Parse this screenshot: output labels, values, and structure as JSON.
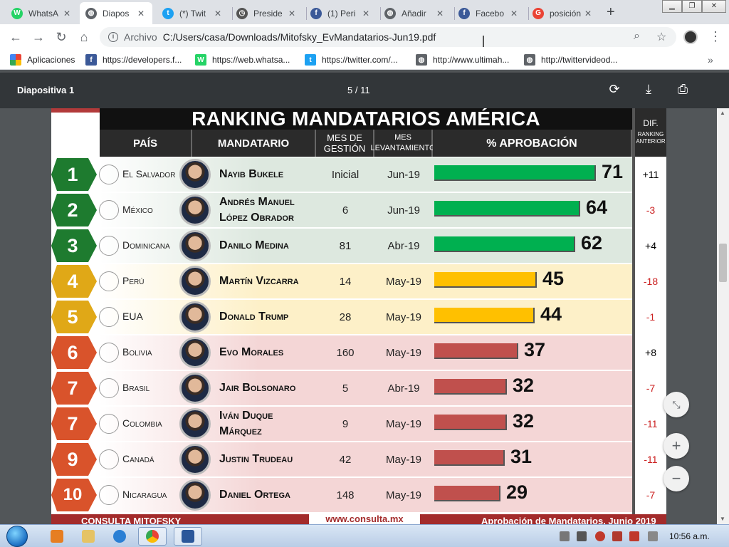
{
  "browser": {
    "tabs": [
      {
        "title": "WhatsA",
        "color": "#25d366",
        "glyph": "W",
        "active": false
      },
      {
        "title": "Diapos",
        "color": "#5f6368",
        "glyph": "◍",
        "active": true
      },
      {
        "title": "(*) Twit",
        "color": "#1da1f2",
        "glyph": "t",
        "active": false
      },
      {
        "title": "Preside",
        "color": "#555555",
        "glyph": "◷",
        "active": false
      },
      {
        "title": "(1) Peri",
        "color": "#3b5998",
        "glyph": "f",
        "active": false
      },
      {
        "title": "Añadir",
        "color": "#5f6368",
        "glyph": "◍",
        "active": false
      },
      {
        "title": "Facebo",
        "color": "#3b5998",
        "glyph": "f",
        "active": false
      },
      {
        "title": "posición",
        "color": "#ea4335",
        "glyph": "G",
        "active": false
      }
    ],
    "address": {
      "scheme": "Archivo",
      "url": "C:/Users/casa/Downloads/Mitofsky_EvMandatarios-Jun19.pdf"
    },
    "bookmarks": [
      {
        "label": "Aplicaciones",
        "color": "#ea4335",
        "glyph": "⁝"
      },
      {
        "label": "https://developers.f...",
        "color": "#3b5998",
        "glyph": "f"
      },
      {
        "label": "https://web.whatsa...",
        "color": "#25d366",
        "glyph": "W"
      },
      {
        "label": "https://twitter.com/...",
        "color": "#1da1f2",
        "glyph": "t"
      },
      {
        "label": "http://www.ultimah...",
        "color": "#5f6368",
        "glyph": "◍"
      },
      {
        "label": "http://twittervideod...",
        "color": "#5f6368",
        "glyph": "◍"
      }
    ]
  },
  "pdf": {
    "title": "Diapositiva 1",
    "page_indicator": "5 / 11"
  },
  "slide": {
    "title": "RANKING MANDATARIOS AMÉRICA",
    "headers": {
      "pais": "PAÍS",
      "mandatario": "MANDATARIO",
      "mes_gestion": "MES DE GESTIÓN",
      "mes_levantamiento": "MES LEVANTAMIENTO",
      "aprobacion": "% APROBACIÓN",
      "dif": "DIF.",
      "dif_sub": "RANKING ANTERIOR"
    },
    "footer": {
      "left": "CONSULTA MITOFSKY",
      "middle": "www.consulta.mx",
      "right": "Aprobación de Mandatarios, Junio 2019"
    },
    "rows": [
      {
        "rank": "1",
        "country": "El Salvador",
        "leader": "Nayib Bukele",
        "mes": "Inicial",
        "lev": "Jun-19",
        "approval": 71,
        "dif": "+11",
        "tier": "green"
      },
      {
        "rank": "2",
        "country": "México",
        "leader": "Andrés Manuel López Obrador",
        "mes": "6",
        "lev": "Jun-19",
        "approval": 64,
        "dif": "-3",
        "tier": "green"
      },
      {
        "rank": "3",
        "country": "Dominicana",
        "leader": "Danilo Medina",
        "mes": "81",
        "lev": "Abr-19",
        "approval": 62,
        "dif": "+4",
        "tier": "green"
      },
      {
        "rank": "4",
        "country": "Perú",
        "leader": "Martín Vizcarra",
        "mes": "14",
        "lev": "May-19",
        "approval": 45,
        "dif": "-18",
        "tier": "yellow"
      },
      {
        "rank": "5",
        "country": "EUA",
        "leader": "Donald Trump",
        "mes": "28",
        "lev": "May-19",
        "approval": 44,
        "dif": "-1",
        "tier": "yellow"
      },
      {
        "rank": "6",
        "country": "Bolivia",
        "leader": "Evo Morales",
        "mes": "160",
        "lev": "May-19",
        "approval": 37,
        "dif": "+8",
        "tier": "red"
      },
      {
        "rank": "7",
        "country": "Brasil",
        "leader": "Jair Bolsonaro",
        "mes": "5",
        "lev": "Abr-19",
        "approval": 32,
        "dif": "-7",
        "tier": "red"
      },
      {
        "rank": "7",
        "country": "Colombia",
        "leader": "Iván Duque Márquez",
        "mes": "9",
        "lev": "May-19",
        "approval": 32,
        "dif": "-11",
        "tier": "red"
      },
      {
        "rank": "9",
        "country": "Canadá",
        "leader": "Justin Trudeau",
        "mes": "42",
        "lev": "May-19",
        "approval": 31,
        "dif": "-11",
        "tier": "red"
      },
      {
        "rank": "10",
        "country": "Nicaragua",
        "leader": "Daniel Ortega",
        "mes": "148",
        "lev": "May-19",
        "approval": 29,
        "dif": "-7",
        "tier": "red"
      }
    ]
  },
  "colors": {
    "green_bar": "#00b050",
    "yellow_bar": "#ffc000",
    "red_bar": "#c0504d",
    "green_badge": "#1e7b2f",
    "yellow_badge": "#e0a817",
    "red_badge": "#d9532b",
    "green_row": "#dde8df",
    "yellow_row": "#fdf0c8",
    "red_row": "#f4d6d6",
    "dif_negative": "#cc2222"
  },
  "taskbar": {
    "clock": "10:56 a.m."
  }
}
